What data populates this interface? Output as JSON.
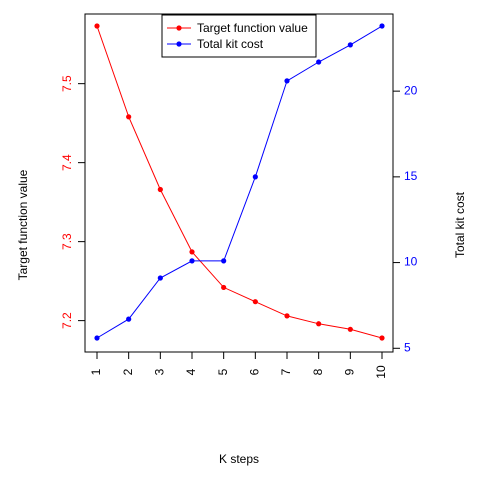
{
  "chart_data": {
    "type": "line",
    "xlabel": "K steps",
    "ylabel_left": "Target function value",
    "ylabel_right": "Total kit cost",
    "x": [
      1,
      2,
      3,
      4,
      5,
      6,
      7,
      8,
      9,
      10
    ],
    "x_tick_labels": [
      "1",
      "2",
      "3",
      "4",
      "5",
      "6",
      "7",
      "8",
      "9",
      "10"
    ],
    "xlim": [
      1,
      10
    ],
    "y_left_lim": [
      7.178,
      7.573
    ],
    "y_left_ticks": [
      "7.2",
      "7.3",
      "7.4",
      "7.5"
    ],
    "y_right_lim": [
      5.6,
      23.8
    ],
    "y_right_ticks": [
      "5",
      "10",
      "15",
      "20"
    ],
    "grid": false,
    "legend_position": "top-center",
    "series": [
      {
        "name": "Target function value",
        "axis": "left",
        "color": "#ff0000",
        "values": [
          7.573,
          7.458,
          7.366,
          7.287,
          7.242,
          7.224,
          7.206,
          7.196,
          7.189,
          7.178
        ]
      },
      {
        "name": "Total kit cost",
        "axis": "right",
        "color": "#0000ff",
        "values": [
          5.6,
          6.7,
          9.1,
          10.1,
          10.1,
          15.0,
          20.6,
          21.7,
          22.7,
          23.8
        ]
      }
    ]
  }
}
